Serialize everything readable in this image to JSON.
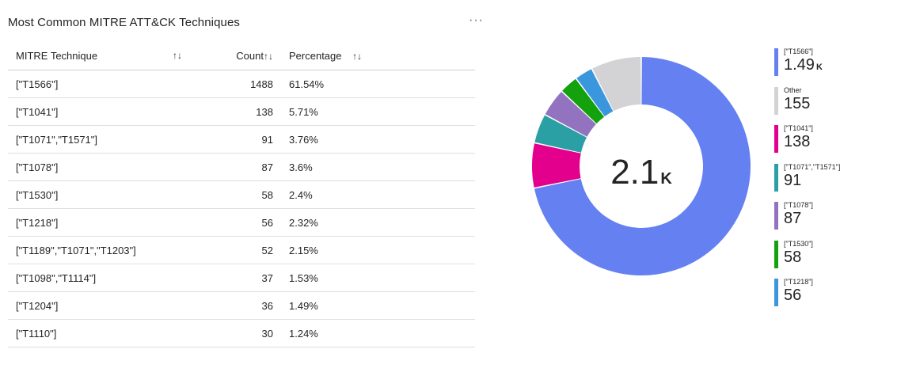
{
  "header": {
    "title": "Most Common MITRE ATT&CK Techniques",
    "more_label": "···"
  },
  "table": {
    "columns": [
      "MITRE Technique",
      "Count",
      "Percentage"
    ],
    "sort_icon": "↑↓",
    "rows": [
      {
        "technique": "[\"T1566\"]",
        "count": "1488",
        "percentage": "61.54%"
      },
      {
        "technique": "[\"T1041\"]",
        "count": "138",
        "percentage": "5.71%"
      },
      {
        "technique": "[\"T1071\",\"T1571\"]",
        "count": "91",
        "percentage": "3.76%"
      },
      {
        "technique": "[\"T1078\"]",
        "count": "87",
        "percentage": "3.6%"
      },
      {
        "technique": "[\"T1530\"]",
        "count": "58",
        "percentage": "2.4%"
      },
      {
        "technique": "[\"T1218\"]",
        "count": "56",
        "percentage": "2.32%"
      },
      {
        "technique": "[\"T1189\",\"T1071\",\"T1203\"]",
        "count": "52",
        "percentage": "2.15%"
      },
      {
        "technique": "[\"T1098\",\"T1114\"]",
        "count": "37",
        "percentage": "1.53%"
      },
      {
        "technique": "[\"T1204\"]",
        "count": "36",
        "percentage": "1.49%"
      },
      {
        "technique": "[\"T1110\"]",
        "count": "30",
        "percentage": "1.24%"
      }
    ]
  },
  "chart_data": {
    "type": "pie",
    "donut": true,
    "center_value": "2.1",
    "center_unit": "K",
    "categories": [
      "[\"T1566\"]",
      "[\"T1041\"]",
      "[\"T1071\",\"T1571\"]",
      "[\"T1078\"]",
      "[\"T1530\"]",
      "[\"T1218\"]",
      "Other"
    ],
    "values": [
      1488,
      138,
      91,
      87,
      58,
      56,
      155
    ],
    "colors": [
      "#6580f1",
      "#e3008c",
      "#2aa0a4",
      "#9373c0",
      "#13a10e",
      "#3a96dd",
      "#d3d3d5"
    ],
    "legend_position": "right",
    "legend": [
      {
        "label": "[\"T1566\"]",
        "value": "1.49",
        "unit": "K",
        "color": "#6580f1"
      },
      {
        "label": "Other",
        "value": "155",
        "unit": "",
        "color": "#d3d3d5"
      },
      {
        "label": "[\"T1041\"]",
        "value": "138",
        "unit": "",
        "color": "#e3008c"
      },
      {
        "label": "[\"T1071\",\"T1571\"]",
        "value": "91",
        "unit": "",
        "color": "#2aa0a4"
      },
      {
        "label": "[\"T1078\"]",
        "value": "87",
        "unit": "",
        "color": "#9373c0"
      },
      {
        "label": "[\"T1530\"]",
        "value": "58",
        "unit": "",
        "color": "#13a10e"
      },
      {
        "label": "[\"T1218\"]",
        "value": "56",
        "unit": "",
        "color": "#3a96dd"
      }
    ]
  }
}
